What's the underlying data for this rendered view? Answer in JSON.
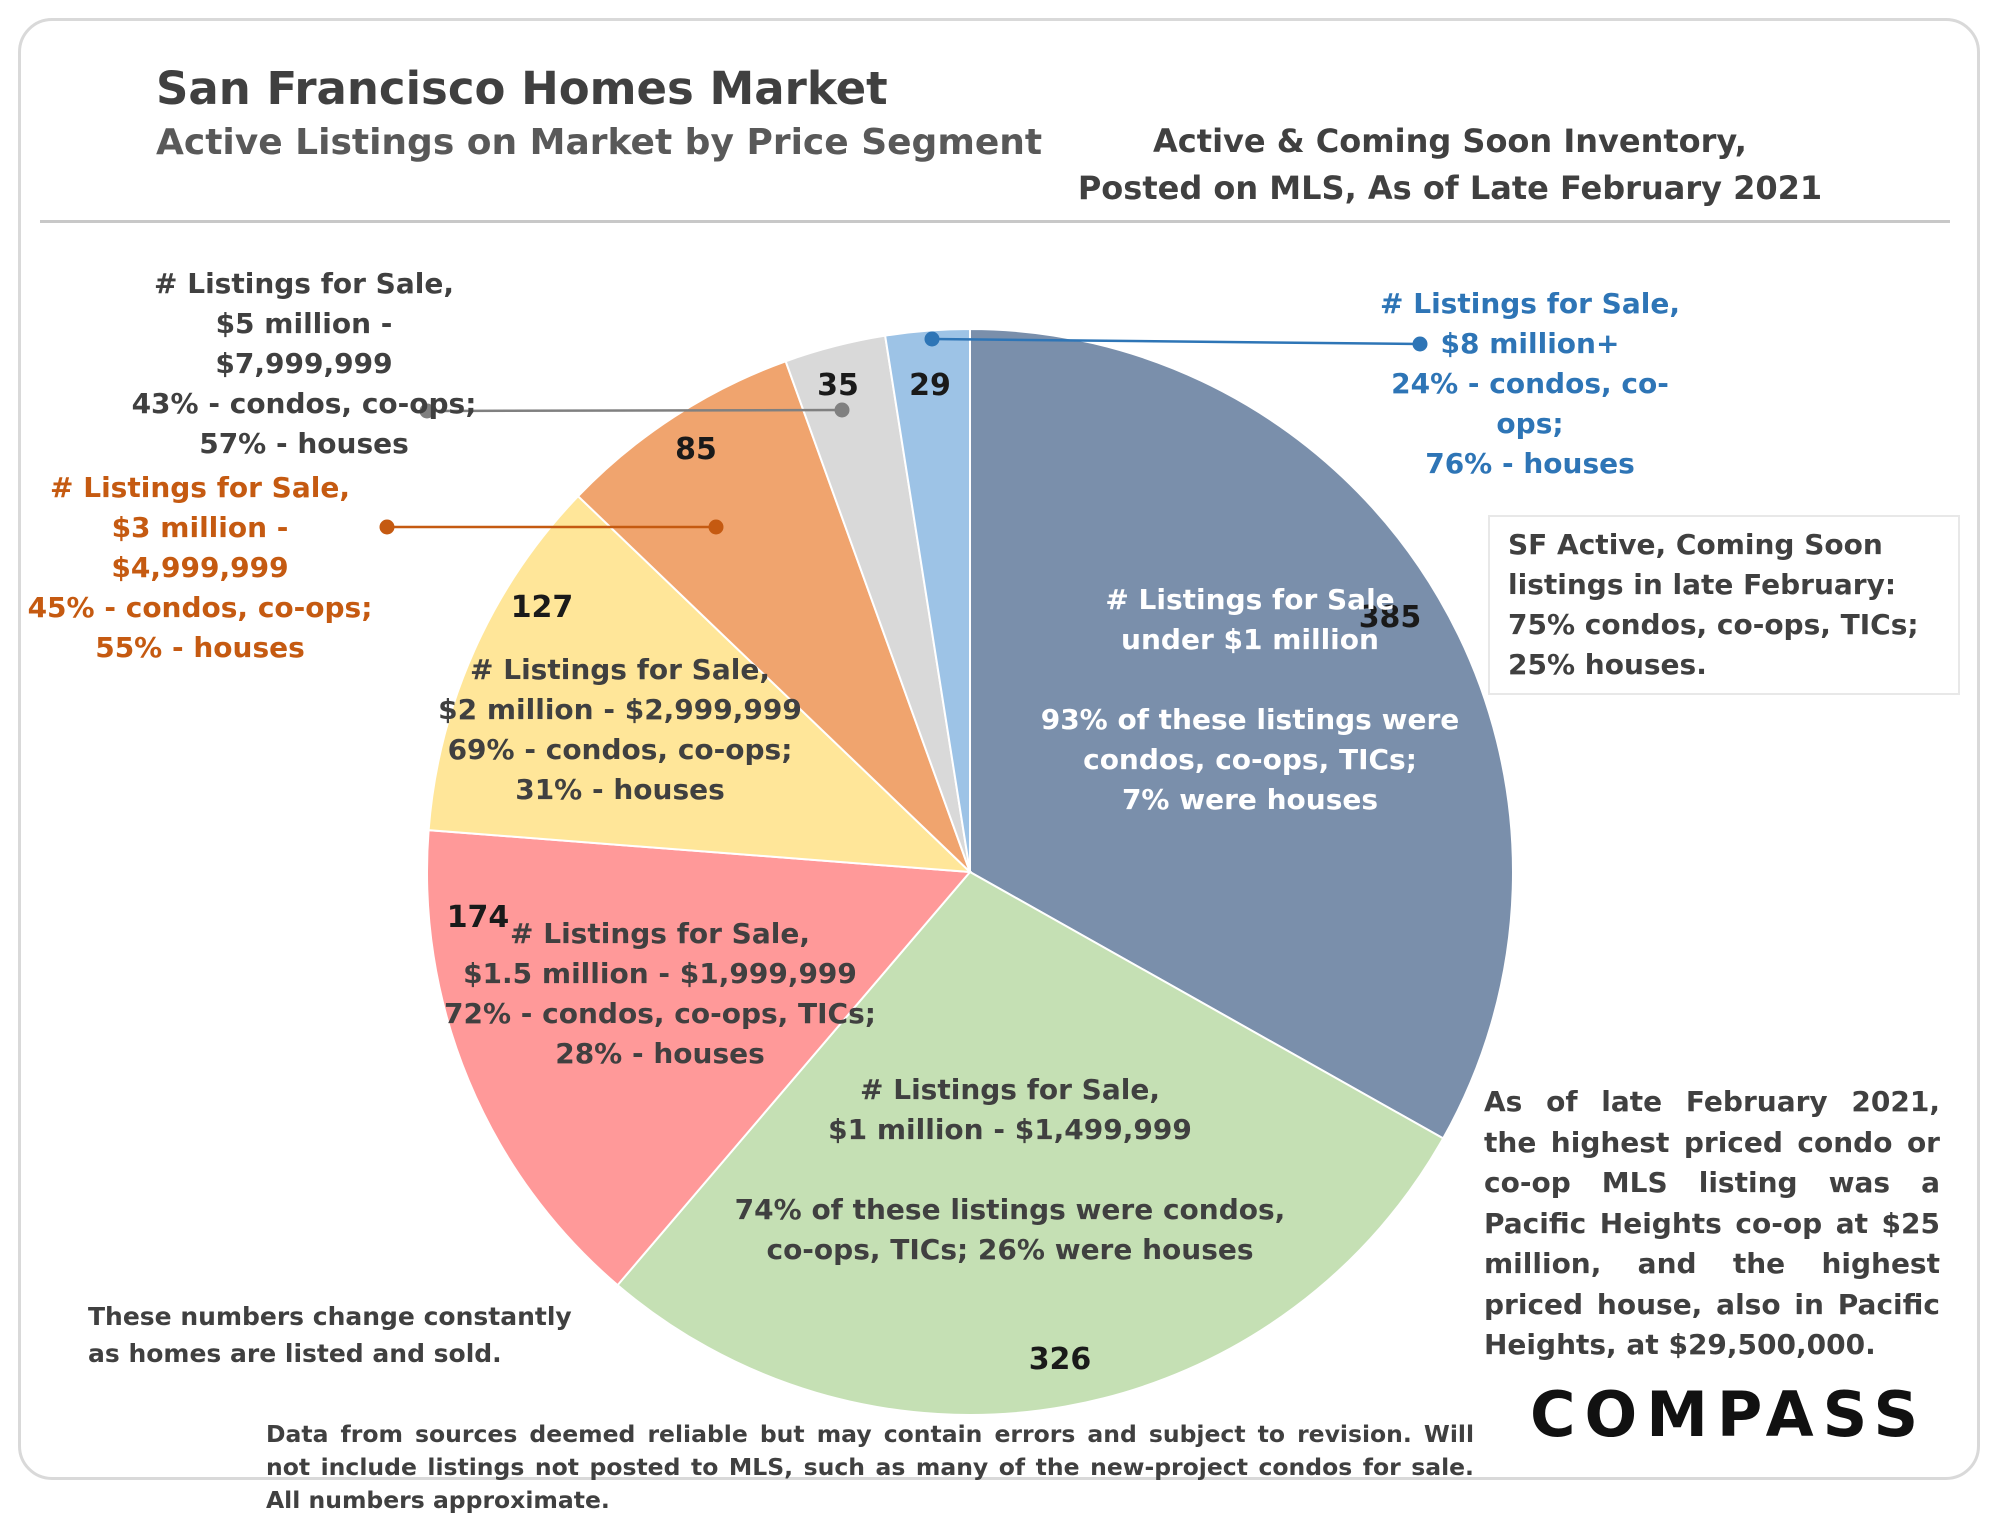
{
  "title": "San Francisco Homes Market",
  "subtitle": "Active Listings on Market by Price Segment",
  "inventory_note": [
    "Active & Coming Soon Inventory,",
    "Posted on MLS, As of Late February 2021"
  ],
  "chart_data": {
    "type": "pie",
    "title": "San Francisco Homes Market",
    "subtitle": "Active Listings on Market by Price Segment",
    "slices": [
      {
        "category": "under $1 million",
        "value": 385,
        "color": "#7a8fab",
        "label": [
          "# Listings for Sale",
          "under $1 million",
          "",
          "93% of these listings were",
          "condos, co-ops, TICs;",
          "7% were houses"
        ]
      },
      {
        "category": "$1 million - $1,499,999",
        "value": 326,
        "color": "#c5e0b4",
        "label": [
          "# Listings for Sale,",
          "$1 million - $1,499,999",
          "",
          "74% of these listings were  condos,",
          "co-ops, TICs; 26% were houses"
        ]
      },
      {
        "category": "$1.5 million - $1,999,999",
        "value": 174,
        "color": "#ff9999",
        "label": [
          "# Listings for Sale,",
          "$1.5 million - $1,999,999",
          "72% - condos, co-ops, TICs;",
          "28% - houses"
        ]
      },
      {
        "category": "$2 million - $2,999,999",
        "value": 127,
        "color": "#ffe699",
        "label": [
          "# Listings for Sale,",
          "$2 million - $2,999,999",
          "69% - condos, co-ops;",
          "31% - houses"
        ]
      },
      {
        "category": "$3 million - $4,999,999",
        "value": 85,
        "color": "#f0a46e",
        "label": [
          "# Listings for Sale,",
          "$3 million - $4,999,999",
          "45% - condos, co-ops;",
          "55% - houses"
        ]
      },
      {
        "category": "$5 million - $7,999,999",
        "value": 35,
        "color": "#d9d9d9",
        "label": [
          "# Listings for Sale,",
          "$5 million - $7,999,999",
          "43% - condos, co-ops;",
          "57% - houses"
        ]
      },
      {
        "category": "$8 million+",
        "value": 29,
        "color": "#9dc3e6",
        "label": [
          "# Listings for Sale,",
          "$8 million+",
          "24% - condos, co-ops;",
          "76% - houses"
        ]
      }
    ],
    "colors": {
      "label_text": "#404040",
      "orange_text": "#c55a11",
      "blue_text": "#2e75b6",
      "leader_gray": "#808080"
    }
  },
  "annotation_box": "SF Active, Coming Soon listings in late February: 75% condos, co-ops, TICs; 25% houses.",
  "annotation_note": "As of late February 2021, the highest priced condo or co-op MLS listing was a Pacific Heights co-op at $25 million, and the highest priced house, also in Pacific Heights, at $29,500,000.",
  "footnote": "These numbers change constantly as homes are listed and sold.",
  "source": "Data from sources deemed reliable but may contain errors and subject to revision. Will not include listings not posted to MLS, such as many of the new-project condos for sale. All numbers approximate.",
  "logo_text": "COMPASS"
}
